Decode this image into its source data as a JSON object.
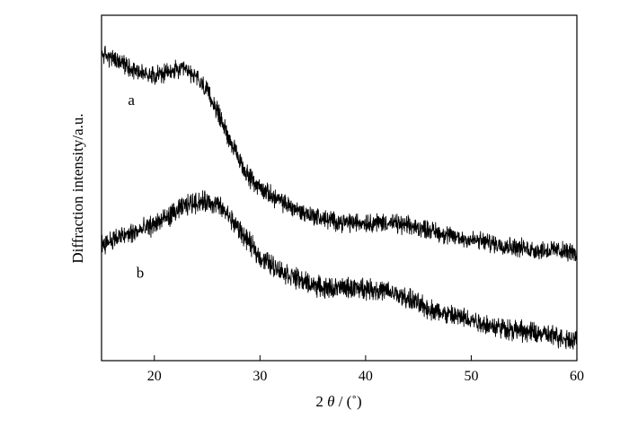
{
  "chart_data": {
    "type": "line",
    "xlabel_prefix": "2",
    "xlabel_symbol": "θ",
    "xlabel_suffix": "/ (˚)",
    "ylabel": "Diffraction intensity/a.u.",
    "xlim": [
      15,
      60
    ],
    "ylim": [
      0,
      100
    ],
    "x_ticks": [
      20,
      30,
      40,
      50,
      60
    ],
    "grid": false,
    "legend": "none",
    "line_color": "#000000",
    "series": [
      {
        "name": "a",
        "label_at": [
          17.5,
          74
        ],
        "noise": 1.8,
        "x": [
          15,
          17,
          19,
          21,
          22,
          23,
          24,
          25,
          26,
          27,
          28,
          29,
          30,
          32,
          34,
          36,
          38,
          40,
          42,
          44,
          46,
          48,
          50,
          52,
          54,
          56,
          58,
          60
        ],
        "y": [
          89,
          86,
          83,
          83,
          84,
          84,
          82,
          78,
          72,
          65,
          58,
          53,
          50,
          46,
          43,
          41,
          40,
          40,
          40,
          39,
          38,
          36,
          35,
          34,
          33,
          32,
          32,
          31
        ]
      },
      {
        "name": "b",
        "label_at": [
          18.3,
          24
        ],
        "noise": 2.0,
        "x": [
          15,
          17,
          19,
          21,
          22,
          23,
          24,
          25,
          26,
          27,
          28,
          29,
          30,
          32,
          34,
          36,
          38,
          40,
          42,
          44,
          46,
          48,
          50,
          52,
          54,
          56,
          58,
          60
        ],
        "y": [
          34,
          36,
          38,
          41,
          43,
          45,
          46,
          46,
          45,
          42,
          38,
          34,
          30,
          26,
          23,
          21,
          21,
          21,
          20,
          18,
          15,
          13,
          12,
          10,
          9,
          8,
          7,
          6
        ]
      }
    ]
  }
}
